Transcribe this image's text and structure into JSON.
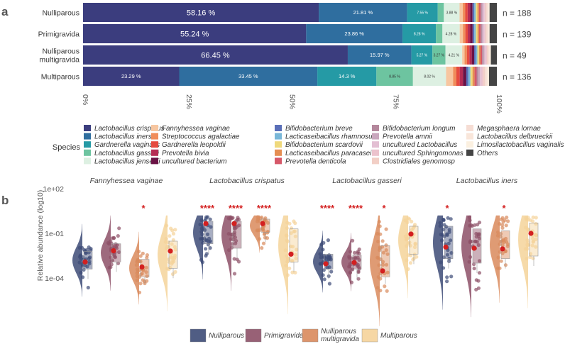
{
  "panel_labels": {
    "a": "a",
    "b": "b"
  },
  "colors": {
    "background": "#ffffff",
    "axis_text": "#555555",
    "mean_point": "#d32020",
    "stars": "#d32020",
    "group_colors": [
      "#3d4b77",
      "#8d5067",
      "#d98a5c",
      "#f5d39a"
    ]
  },
  "chart_data": [
    {
      "id": "a",
      "type": "bar",
      "stacked": true,
      "orientation": "horizontal",
      "categories": [
        "Nulliparous",
        "Primigravida",
        "Nulliparous multigravida",
        "Multiparous"
      ],
      "category_lines": [
        [
          "Nulliparous"
        ],
        [
          "Primigravida"
        ],
        [
          "Nulliparous",
          "multigravida"
        ],
        [
          "Multiparous"
        ]
      ],
      "n_labels": [
        "n = 188",
        "n = 139",
        "n = 49",
        "n = 136"
      ],
      "xlim": [
        0,
        100
      ],
      "xticks": [
        "0%",
        "25%",
        "50%",
        "75%",
        "100%"
      ],
      "legend_title": "Species",
      "series": [
        {
          "name": "Lactobacillus crispatus",
          "color": "#3b3d7e",
          "values": [
            58.16,
            55.24,
            66.45,
            23.29
          ],
          "labels": [
            "58.16 %",
            "55.24 %",
            "66.45 %",
            "23.29 %"
          ]
        },
        {
          "name": "Lactobacillus iners",
          "color": "#2f6e9f",
          "values": [
            21.81,
            23.86,
            15.97,
            33.45
          ],
          "labels": [
            "21.81 %",
            "23.86 %",
            "15.97 %",
            "33.45 %"
          ]
        },
        {
          "name": "Gardnerella vaginalis",
          "color": "#259aa5",
          "values": [
            7.55,
            8.28,
            5.27,
            14.3
          ],
          "labels": [
            "7.55 %",
            "8.28 %",
            "5.27 %",
            "14.3 %"
          ]
        },
        {
          "name": "Lactobacillus gasseri",
          "color": "#6dc4a0",
          "values": [
            1.5,
            1.6,
            3.27,
            8.85
          ],
          "labels": [
            "",
            "",
            "3.27 %",
            "8.85 %"
          ]
        },
        {
          "name": "Lactobacillus jensenii",
          "color": "#ddf0e2",
          "values": [
            3.88,
            4.28,
            4.21,
            8.02
          ],
          "labels": [
            "3.88 %",
            "4.28 %",
            "4.21 %",
            "8.02 %"
          ]
        },
        {
          "name": "Fannyhessea vaginae",
          "color": "#f7c6a0",
          "values": [
            0.8,
            0.8,
            0.6,
            1.7
          ],
          "labels": []
        },
        {
          "name": "Streptococcus agalactiae",
          "color": "#f08c5a",
          "values": [
            0.6,
            0.6,
            0.6,
            0.8
          ],
          "labels": []
        },
        {
          "name": "Gardnerella leopoldii",
          "color": "#e54a3f",
          "values": [
            0.6,
            0.6,
            0.6,
            0.8
          ],
          "labels": []
        },
        {
          "name": "Prevotella bivia",
          "color": "#b52c54",
          "values": [
            0.6,
            0.6,
            0.6,
            0.8
          ],
          "labels": []
        },
        {
          "name": "uncultured bacterium",
          "color": "#6a1245",
          "values": [
            0.6,
            0.6,
            0.6,
            0.8
          ],
          "labels": []
        },
        {
          "name": "Bifidobacterium breve",
          "color": "#5a6fb8",
          "values": [
            0.4,
            0.4,
            0.4,
            0.5
          ],
          "labels": []
        },
        {
          "name": "Lacticaseibacillus rhamnosus",
          "color": "#79b7d8",
          "values": [
            0.4,
            0.4,
            0.4,
            0.5
          ],
          "labels": []
        },
        {
          "name": "Bifidobacterium scardovii",
          "color": "#efd97c",
          "values": [
            0.4,
            0.4,
            0.4,
            0.5
          ],
          "labels": []
        },
        {
          "name": "Lacticaseibacillus paracasei",
          "color": "#e58e52",
          "values": [
            0.4,
            0.4,
            0.4,
            0.5
          ],
          "labels": []
        },
        {
          "name": "Prevotella denticola",
          "color": "#d65869",
          "values": [
            0.4,
            0.4,
            0.4,
            0.5
          ],
          "labels": []
        },
        {
          "name": "Bifidobacterium longum",
          "color": "#b4879c",
          "values": [
            0.3,
            0.3,
            0.3,
            0.4
          ],
          "labels": []
        },
        {
          "name": "Prevotella amnii",
          "color": "#c9a6bd",
          "values": [
            0.3,
            0.3,
            0.3,
            0.4
          ],
          "labels": []
        },
        {
          "name": "uncultured Lactobacillus",
          "color": "#e3bfd3",
          "values": [
            0.3,
            0.3,
            0.3,
            0.4
          ],
          "labels": []
        },
        {
          "name": "uncultured Sphingomonas",
          "color": "#ecc3cd",
          "values": [
            0.3,
            0.3,
            0.3,
            0.4
          ],
          "labels": []
        },
        {
          "name": "Clostridiales genomosp",
          "color": "#f2cfc6",
          "values": [
            0.3,
            0.3,
            0.3,
            0.4
          ],
          "labels": []
        },
        {
          "name": "Megasphaera lornae",
          "color": "#f6ddd4",
          "values": [
            0.3,
            0.3,
            0.3,
            0.4
          ],
          "labels": []
        },
        {
          "name": "Lactobacillus delbrueckii",
          "color": "#f9e6da",
          "values": [
            0.2,
            0.2,
            0.2,
            0.3
          ],
          "labels": []
        },
        {
          "name": "Limosilactobacillus vaginalis",
          "color": "#fbf0e0",
          "values": [
            0.2,
            0.2,
            0.2,
            0.3
          ],
          "labels": []
        },
        {
          "name": "Others",
          "color": "#444444",
          "values": [
            1.8,
            1.8,
            1.5,
            1.9
          ],
          "labels": []
        }
      ]
    },
    {
      "id": "b",
      "type": "violin-box-jitter",
      "ylabel": "Relative abundance (log10)",
      "yscale": "log10",
      "ylim": [
        1e-06,
        100
      ],
      "ytick_values": [
        0.0001,
        0.1,
        100
      ],
      "yticks": [
        "1e-04",
        "1e-01",
        "1e+02"
      ],
      "groups": [
        "Nulliparous",
        "Primigravida",
        "Nulliparous multigravida",
        "Multiparous"
      ],
      "group_lines": [
        [
          "Nulliparous"
        ],
        [
          "Primigravida"
        ],
        [
          "Nulliparous",
          "multigravida"
        ],
        [
          "Multiparous"
        ]
      ],
      "panels": [
        {
          "species": "Fannyhessea vaginae",
          "means": [
            0.0012,
            0.0068,
            0.00055,
            0.0065
          ],
          "q1": [
            0.0004,
            0.0012,
            0.00012,
            0.00045
          ],
          "q3": [
            0.006,
            0.02,
            0.0018,
            0.03
          ],
          "significance": [
            "",
            "",
            "*",
            ""
          ]
        },
        {
          "species": "Lactobacillus crispatus",
          "means": [
            0.45,
            0.45,
            0.45,
            0.004
          ],
          "q1": [
            0.02,
            0.01,
            0.12,
            0.0012
          ],
          "q3": [
            0.65,
            0.65,
            0.9,
            0.2
          ],
          "significance": [
            "****",
            "****",
            "****",
            ""
          ]
        },
        {
          "species": "Lactobacillus gasseri",
          "means": [
            0.0009,
            0.0011,
            0.0003,
            0.09
          ],
          "q1": [
            0.0004,
            0.0004,
            0.00012,
            0.004
          ],
          "q3": [
            0.004,
            0.0035,
            0.015,
            0.3
          ],
          "significance": [
            "****",
            "****",
            "*",
            ""
          ]
        },
        {
          "species": "Lactobacillus iners",
          "means": [
            0.012,
            0.01,
            0.009,
            0.1
          ],
          "q1": [
            0.002,
            0.001,
            0.002,
            0.003
          ],
          "q3": [
            0.3,
            0.2,
            0.15,
            0.5
          ],
          "significance": [
            "*",
            "",
            "*",
            ""
          ]
        }
      ]
    }
  ]
}
